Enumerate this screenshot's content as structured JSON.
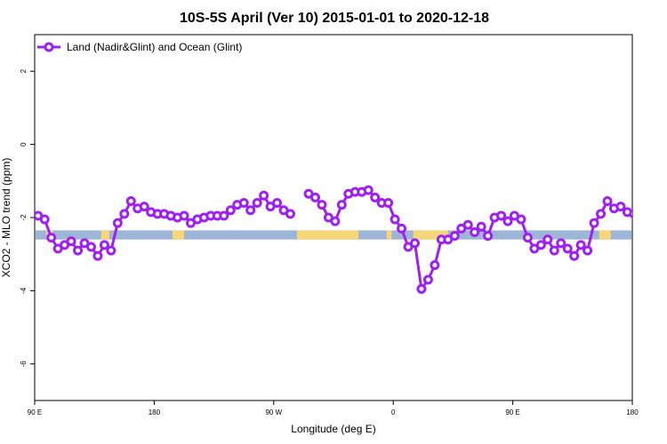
{
  "chart_data": {
    "type": "line",
    "title": "10S-5S April (Ver 10)   2015-01-01 to 2020-12-18",
    "xlabel": "Longitude (deg E)",
    "ylabel": "XCO2 - MLO trend (ppm)",
    "xlim": [
      90,
      450
    ],
    "ylim": [
      -7,
      3
    ],
    "x_ticks": [
      {
        "value": 90,
        "label": "90 E"
      },
      {
        "value": 162,
        "label": "180"
      },
      {
        "value": 234,
        "label": "90 W"
      },
      {
        "value": 306,
        "label": "0"
      },
      {
        "value": 378,
        "label": "90 E"
      },
      {
        "value": 450,
        "label": "180"
      }
    ],
    "y_ticks": [
      {
        "value": 2,
        "label": "2"
      },
      {
        "value": 0,
        "label": "0"
      },
      {
        "value": -2,
        "label": "-2"
      },
      {
        "value": -4,
        "label": "-4"
      },
      {
        "value": -6,
        "label": "-6"
      }
    ],
    "legend": {
      "position": "top-left"
    },
    "land_band": {
      "y_top": -2.35,
      "y_bottom": -2.6,
      "ocean_color": "#9db5d6",
      "land_color": "#f5d77a",
      "land_segments": [
        [
          97,
          101
        ],
        [
          130,
          135
        ],
        [
          173,
          180
        ],
        [
          248,
          285
        ],
        [
          302,
          305
        ],
        [
          318,
          339
        ],
        [
          430,
          437
        ]
      ]
    },
    "series": [
      {
        "name": "Land (Nadir&Glint) and Ocean (Glint)",
        "color": "#a020f0",
        "segments": [
          {
            "x": [
              92,
              96,
              100,
              104,
              108,
              112,
              116,
              120,
              124,
              128,
              132,
              136,
              140,
              144,
              148,
              152,
              156,
              160,
              164,
              168,
              172,
              176,
              180,
              184,
              188,
              192,
              196,
              200,
              204,
              208,
              212,
              216,
              220,
              224,
              228,
              232,
              236,
              240,
              244
            ],
            "y": [
              -1.95,
              -2.05,
              -2.55,
              -2.85,
              -2.75,
              -2.65,
              -2.9,
              -2.7,
              -2.8,
              -3.05,
              -2.75,
              -2.9,
              -2.15,
              -1.9,
              -1.55,
              -1.75,
              -1.7,
              -1.85,
              -1.9,
              -1.9,
              -1.95,
              -2.0,
              -1.95,
              -2.15,
              -2.05,
              -2.0,
              -1.95,
              -1.95,
              -1.95,
              -1.8,
              -1.65,
              -1.6,
              -1.8,
              -1.6,
              -1.4,
              -1.7,
              -1.6,
              -1.8,
              -1.9
            ]
          },
          {
            "x": [
              255,
              259,
              263,
              267,
              271,
              275,
              279,
              283,
              287,
              291,
              295,
              299,
              303,
              307,
              311,
              315,
              319,
              323,
              327,
              331,
              335,
              339,
              343,
              347,
              351,
              355,
              359,
              363,
              367,
              371,
              375,
              379,
              383,
              387,
              391,
              395,
              399,
              403,
              407,
              411,
              415,
              419,
              423,
              427,
              431,
              435,
              439,
              443,
              447,
              451
            ],
            "y": [
              -1.35,
              -1.45,
              -1.65,
              -2.0,
              -2.1,
              -1.65,
              -1.35,
              -1.3,
              -1.3,
              -1.25,
              -1.45,
              -1.6,
              -1.6,
              -2.05,
              -2.3,
              -2.8,
              -2.7,
              -3.95,
              -3.7,
              -3.3,
              -2.6,
              -2.6,
              -2.5,
              -2.3,
              -2.2,
              -2.4,
              -2.25,
              -2.5,
              -2.0,
              -1.95,
              -2.1,
              -1.95,
              -2.05,
              -2.55,
              -2.85,
              -2.75,
              -2.6,
              -2.9,
              -2.7,
              -2.85,
              -3.05,
              -2.75,
              -2.9,
              -2.15,
              -1.9,
              -1.55,
              -1.75,
              -1.7,
              -1.85,
              -1.9
            ]
          }
        ]
      }
    ]
  }
}
